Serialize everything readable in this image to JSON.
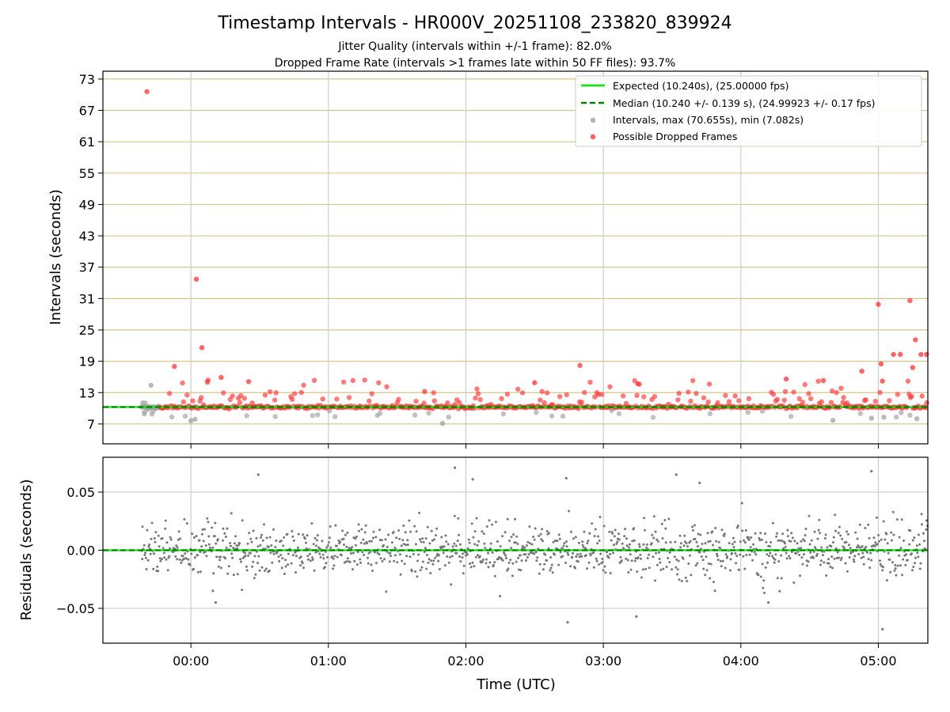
{
  "chart_data": {
    "title": "Timestamp Intervals - HR000V_20251108_233820_839924",
    "subtitle_line1": "Jitter Quality (intervals within +/-1 frame): 82.0%",
    "subtitle_line2": "Dropped Frame Rate (intervals >1 frames late within 50 FF files): 93.7%",
    "xlabel": "Time (UTC)",
    "x_ticks": [
      "00:00",
      "01:00",
      "02:00",
      "03:00",
      "04:00",
      "05:00"
    ],
    "x_range_hours": [
      -0.64,
      5.36
    ],
    "colors": {
      "expected": "#00ee00",
      "median": "#008000",
      "interval": "#a0a0a0",
      "dropped": "#ff3333",
      "residual": "#777777",
      "hgrid_top": "#d8c48a",
      "vgrid": "#cccccc"
    },
    "top": {
      "type": "scatter",
      "ylabel": "Intervals (seconds)",
      "ylim": [
        3.2,
        74.5
      ],
      "y_ticks": [
        7,
        13,
        19,
        25,
        31,
        37,
        43,
        49,
        55,
        61,
        67,
        73
      ],
      "expected": 10.24,
      "median": 10.24,
      "legend": [
        "Expected (10.240s), (25.00000 fps)",
        "Median (10.240 +/- 0.139 s), (24.99923 +/- 0.17 fps)",
        "Intervals, max (70.655s), min (7.082s)",
        "Possible Dropped Frames"
      ],
      "outliers_dropped": [
        {
          "t": -0.32,
          "v": 70.6
        },
        {
          "t": 0.04,
          "v": 34.7
        },
        {
          "t": 0.08,
          "v": 21.6
        },
        {
          "t": -0.12,
          "v": 18.0
        },
        {
          "t": 0.22,
          "v": 15.9
        },
        {
          "t": 0.12,
          "v": 15.0
        },
        {
          "t": 0.42,
          "v": 15.1
        },
        {
          "t": 2.83,
          "v": 18.2
        },
        {
          "t": 5.0,
          "v": 29.9
        },
        {
          "t": 5.23,
          "v": 30.6
        },
        {
          "t": 5.27,
          "v": 23.1
        },
        {
          "t": 5.31,
          "v": 20.3
        },
        {
          "t": 5.35,
          "v": 20.3
        },
        {
          "t": 5.11,
          "v": 20.3
        },
        {
          "t": 5.16,
          "v": 20.3
        },
        {
          "t": 5.02,
          "v": 18.5
        },
        {
          "t": 5.25,
          "v": 17.8
        },
        {
          "t": 4.88,
          "v": 17.1
        },
        {
          "t": 4.33,
          "v": 15.6
        },
        {
          "t": 4.6,
          "v": 15.3
        },
        {
          "t": 5.03,
          "v": 15.2
        },
        {
          "t": 1.7,
          "v": 13.2
        },
        {
          "t": 2.5,
          "v": 14.9
        },
        {
          "t": 3.25,
          "v": 14.7
        }
      ],
      "outliers_interval": [
        {
          "t": -0.29,
          "v": 14.4
        },
        {
          "t": 1.83,
          "v": 7.1
        },
        {
          "t": 0.0,
          "v": 7.6
        },
        {
          "t": 0.03,
          "v": 7.9
        },
        {
          "t": 4.67,
          "v": 7.7
        },
        {
          "t": 5.28,
          "v": 8.0
        },
        {
          "t": 4.95,
          "v": 8.1
        },
        {
          "t": 5.04,
          "v": 8.3
        }
      ]
    },
    "bottom": {
      "type": "scatter",
      "ylabel": "Residuals (seconds)",
      "ylim": [
        -0.08,
        0.08
      ],
      "y_ticks": [
        -0.05,
        0.0,
        0.05
      ],
      "y_tick_labels": [
        "−0.05",
        "0.00",
        "0.05"
      ],
      "outliers": [
        {
          "t": 4.95,
          "v": 0.068
        },
        {
          "t": 5.03,
          "v": -0.068
        },
        {
          "t": 2.74,
          "v": -0.062
        },
        {
          "t": 1.92,
          "v": 0.071
        },
        {
          "t": 0.49,
          "v": 0.065
        },
        {
          "t": 3.53,
          "v": 0.065
        },
        {
          "t": 2.05,
          "v": 0.061
        },
        {
          "t": 2.73,
          "v": 0.062
        },
        {
          "t": 3.7,
          "v": 0.058
        },
        {
          "t": 4.2,
          "v": -0.045
        },
        {
          "t": 3.24,
          "v": -0.057
        },
        {
          "t": 0.18,
          "v": -0.045
        },
        {
          "t": 0.16,
          "v": -0.035
        }
      ]
    }
  }
}
